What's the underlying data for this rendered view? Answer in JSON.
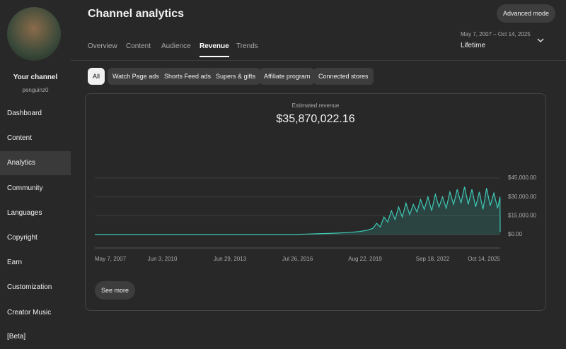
{
  "sidebar": {
    "channel_name": "Your channel",
    "handle": "penguinz0",
    "nav": [
      "Dashboard",
      "Content",
      "Analytics",
      "Community",
      "Languages",
      "Copyright",
      "Earn",
      "Customization",
      "Creator Music [Beta]"
    ]
  },
  "header": {
    "title": "Channel analytics",
    "tabs": [
      "Overview",
      "Content",
      "Audience",
      "Revenue",
      "Trends"
    ],
    "date_range": "May 7, 2007 – Oct 14, 2025",
    "period": "Lifetime",
    "advanced_button": "Advanced mode"
  },
  "filters": [
    "All",
    "Watch Page ads",
    "Shorts Feed ads",
    "Supers & gifts",
    "Affiliate program",
    "Connected stores"
  ],
  "metric": {
    "label": "Estimated revenue",
    "total": "$35,870,022.16"
  },
  "see_more": "See more",
  "chart_data": {
    "type": "area",
    "color": "#3ec9b6",
    "x": [
      "2007-05-07",
      "2016-06-01",
      "2016-09-01",
      "2017-01-01",
      "2017-06-01",
      "2018-01-01",
      "2018-06-01",
      "2019-01-01",
      "2019-06-01",
      "2019-10-01",
      "2020-01-01",
      "2020-03-01",
      "2020-05-01",
      "2020-07-01",
      "2020-09-01",
      "2020-11-01",
      "2021-01-01",
      "2021-03-01",
      "2021-05-01",
      "2021-07-01",
      "2021-09-01",
      "2021-11-01",
      "2022-01-01",
      "2022-03-01",
      "2022-05-01",
      "2022-07-01",
      "2022-09-01",
      "2022-11-01",
      "2023-01-01",
      "2023-03-01",
      "2023-05-01",
      "2023-07-01",
      "2023-09-01",
      "2023-11-01",
      "2024-01-01",
      "2024-03-01",
      "2024-05-01",
      "2024-07-01",
      "2024-09-01",
      "2024-11-01",
      "2025-01-01",
      "2025-03-01",
      "2025-05-01",
      "2025-07-01",
      "2025-09-01",
      "2025-10-10",
      "2025-10-14"
    ],
    "values": [
      0,
      0,
      200,
      400,
      600,
      900,
      1200,
      1800,
      2500,
      3500,
      5000,
      9000,
      6000,
      14000,
      10000,
      19000,
      12000,
      22000,
      14000,
      25000,
      16000,
      24000,
      18000,
      28000,
      20000,
      30000,
      19000,
      32000,
      22000,
      30000,
      21000,
      34000,
      24000,
      36000,
      25000,
      38000,
      24000,
      36000,
      22000,
      34000,
      20000,
      37000,
      23000,
      33000,
      21000,
      30000,
      2000
    ],
    "xlim": [
      "2007-05-07",
      "2025-10-14"
    ],
    "xticks": [
      {
        "value": "2007-05-07",
        "label": "May 7, 2007"
      },
      {
        "value": "2010-06-03",
        "label": "Jun 3, 2010"
      },
      {
        "value": "2013-06-29",
        "label": "Jun 29, 2013"
      },
      {
        "value": "2016-07-26",
        "label": "Jul 26, 2016"
      },
      {
        "value": "2019-08-22",
        "label": "Aug 22, 2019"
      },
      {
        "value": "2022-09-18",
        "label": "Sep 18, 2022"
      },
      {
        "value": "2025-10-14",
        "label": "Oct 14, 2025"
      }
    ],
    "ylim": [
      0,
      45000
    ],
    "yticks": [
      {
        "value": 0,
        "label": "$0.00"
      },
      {
        "value": 15000,
        "label": "$15,000.00"
      },
      {
        "value": 30000,
        "label": "$30,000.00"
      },
      {
        "value": 45000,
        "label": "$45,000.00"
      }
    ],
    "grid": true
  }
}
